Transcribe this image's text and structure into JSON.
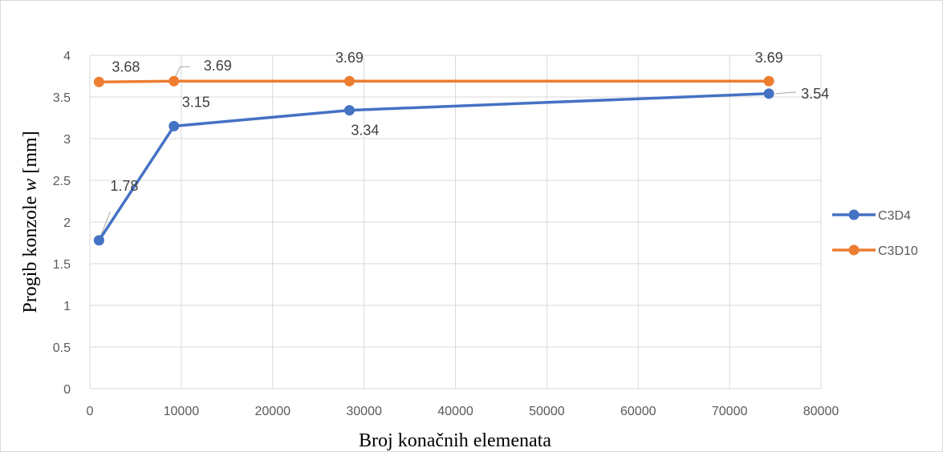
{
  "chart_data": {
    "type": "line",
    "xlabel": "Broj konačnih elemenata",
    "ylabel_prefix": "Progib konzole ",
    "ylabel_var": "w",
    "ylabel_suffix": " [mm]",
    "xlim": [
      0,
      80000
    ],
    "ylim": [
      0,
      4
    ],
    "xticks": [
      0,
      10000,
      20000,
      30000,
      40000,
      50000,
      60000,
      70000,
      80000
    ],
    "yticks": [
      0,
      0.5,
      1,
      1.5,
      2,
      2.5,
      3,
      3.5,
      4
    ],
    "grid": true,
    "legend_position": "right",
    "series": [
      {
        "name": "C3D4",
        "color": "#4472c4",
        "x": [
          1000,
          9200,
          28400,
          74300
        ],
        "y": [
          1.78,
          3.15,
          3.34,
          3.54
        ],
        "labels": [
          "1.78",
          "3.15",
          "3.34",
          "3.54"
        ]
      },
      {
        "name": "C3D10",
        "color": "#ed7d31",
        "x": [
          1000,
          9200,
          28400,
          74300
        ],
        "y": [
          3.68,
          3.69,
          3.69,
          3.69
        ],
        "labels": [
          "3.68",
          "3.69",
          "3.69",
          "3.69"
        ]
      }
    ]
  }
}
